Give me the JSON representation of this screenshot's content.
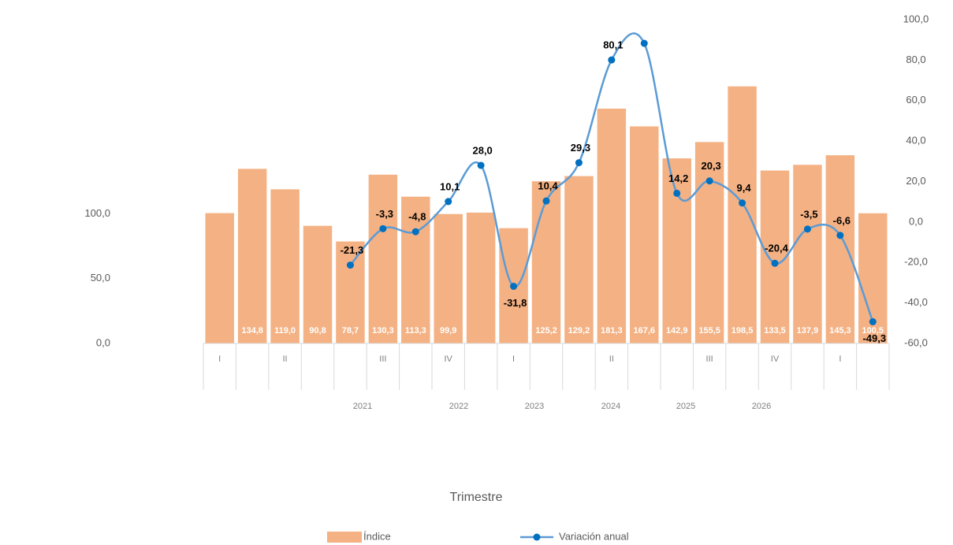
{
  "chart_data": {
    "type": "bar_line",
    "x_title": "Trimestre",
    "categories": [
      "I",
      null,
      "II",
      null,
      null,
      "III",
      null,
      "IV",
      null,
      "I",
      null,
      null,
      "II",
      null,
      null,
      "III",
      null,
      "IV",
      null,
      "I",
      null
    ],
    "years": [
      "2021",
      "2022",
      "2023",
      "2024",
      "2025",
      "2026"
    ],
    "series": [
      {
        "name": "Índice",
        "color": "#f4b183",
        "values": [
          100.6,
          134.8,
          119.0,
          90.8,
          78.7,
          130.3,
          113.3,
          99.9,
          101.0,
          89.0,
          125.2,
          129.2,
          181.3,
          167.6,
          142.9,
          155.5,
          198.5,
          133.5,
          137.9,
          145.3,
          100.5
        ],
        "value_labels": [
          null,
          "134,8",
          "119,0",
          "90,8",
          "78,7",
          "130,3",
          "113,3",
          "99,9",
          null,
          null,
          "125,2",
          "129,2",
          "181,3",
          "167,6",
          "142,9",
          "155,5",
          "198,5",
          "133,5",
          "137,9",
          "145,3",
          "100,5"
        ]
      },
      {
        "name": "Variación anual",
        "color": "#5b9bd5",
        "marker_color": "#0070c0",
        "axis": "y2",
        "values": [
          null,
          null,
          null,
          null,
          -21.3,
          -3.3,
          -4.8,
          10.1,
          28.0,
          -31.8,
          10.4,
          29.3,
          80.1,
          88.3,
          14.2,
          20.3,
          9.4,
          -20.4,
          -3.5,
          -6.6,
          -49.3
        ],
        "value_labels": [
          null,
          null,
          null,
          null,
          "-21,3",
          "-3,3",
          "-4,8",
          "10,1",
          "28,0",
          "-31,8",
          "10,4",
          "29,3",
          "80,1",
          null,
          "14,2",
          "20,3",
          "9,4",
          "-20,4",
          "-3,5",
          "-6,6",
          "-49,3"
        ]
      }
    ],
    "ylim": [
      0,
      250
    ],
    "yticks": [
      {
        "value": 0,
        "label": "0,0"
      },
      {
        "value": 50,
        "label": "50,0"
      },
      {
        "value": 100,
        "label": "100,0"
      }
    ],
    "y2lim": [
      -60,
      100
    ],
    "y2ticks": [
      {
        "value": -60,
        "label": "-60,0"
      },
      {
        "value": -40,
        "label": "-40,0"
      },
      {
        "value": -20,
        "label": "-20,0"
      },
      {
        "value": 0,
        "label": "0,0"
      },
      {
        "value": 20,
        "label": "20,0"
      },
      {
        "value": 40,
        "label": "40,0"
      },
      {
        "value": 60,
        "label": "60,0"
      },
      {
        "value": 80,
        "label": "80,0"
      },
      {
        "value": 100,
        "label": "100,0"
      }
    ],
    "legend": "bottom"
  }
}
